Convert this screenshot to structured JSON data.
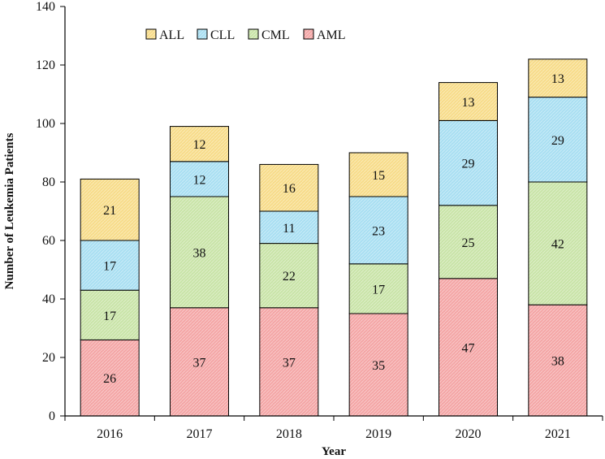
{
  "chart_data": {
    "type": "bar",
    "stacked": true,
    "categories": [
      "2016",
      "2017",
      "2018",
      "2019",
      "2020",
      "2021"
    ],
    "series": [
      {
        "name": "AML",
        "values": [
          26,
          37,
          37,
          35,
          47,
          38
        ],
        "color": "#f4a6a6"
      },
      {
        "name": "CML",
        "values": [
          17,
          38,
          22,
          17,
          25,
          42
        ],
        "color": "#c9e4a8"
      },
      {
        "name": "CLL",
        "values": [
          17,
          12,
          11,
          23,
          29,
          29
        ],
        "color": "#a9dff2"
      },
      {
        "name": "ALL",
        "values": [
          21,
          12,
          16,
          15,
          13,
          13
        ],
        "color": "#f7dc8a"
      }
    ],
    "legend_order": [
      "ALL",
      "CLL",
      "CML",
      "AML"
    ],
    "legend_position": "top-left",
    "xlabel": "Year",
    "ylabel": "Number of Leukemia Patients",
    "ylim": [
      0,
      140
    ],
    "yticks": [
      0,
      20,
      40,
      60,
      80,
      100,
      120,
      140
    ],
    "grid": false
  }
}
